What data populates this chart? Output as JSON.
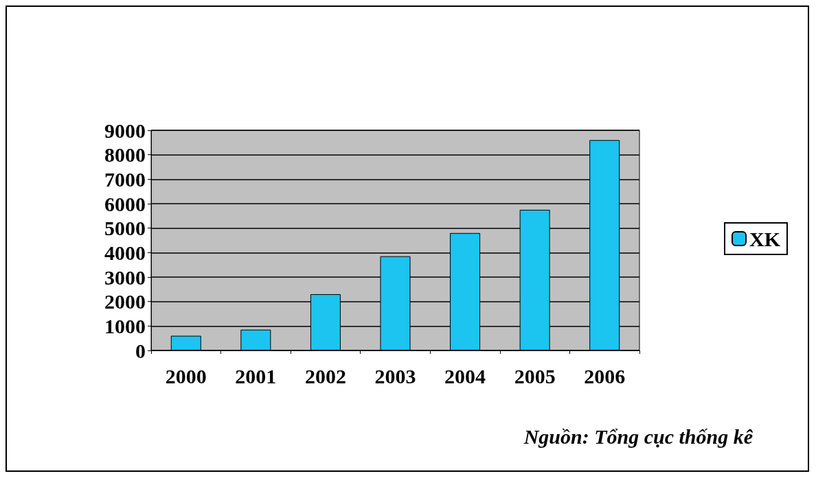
{
  "chart_data": {
    "type": "bar",
    "categories": [
      "2000",
      "2001",
      "2002",
      "2003",
      "2004",
      "2005",
      "2006"
    ],
    "series": [
      {
        "name": "XK",
        "color": "#1cc4f0",
        "values": [
          600,
          850,
          2300,
          3850,
          4800,
          5750,
          8600
        ]
      }
    ],
    "ylim": [
      0,
      9000
    ],
    "yticks": [
      0,
      1000,
      2000,
      3000,
      4000,
      5000,
      6000,
      7000,
      8000,
      9000
    ],
    "grid": "y",
    "legend": "right",
    "annotations": [
      "Nguồn: Tổng cục thống kê"
    ]
  }
}
